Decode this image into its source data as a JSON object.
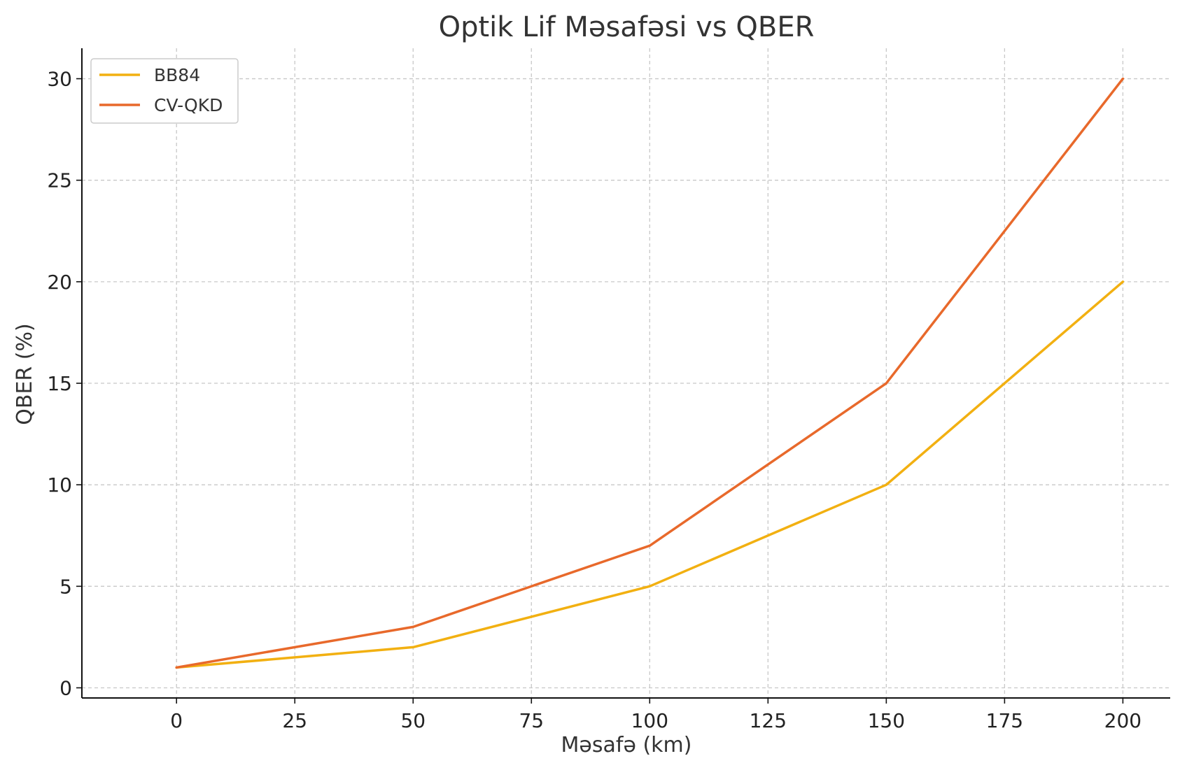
{
  "chart_data": {
    "type": "line",
    "title": "Optik Lif Məsafəsi vs QBER",
    "xlabel": "Məsafə (km)",
    "ylabel": "QBER (%)",
    "x": [
      0,
      50,
      100,
      150,
      200
    ],
    "xlim": [
      -20,
      210
    ],
    "ylim": [
      -0.5,
      31.5
    ],
    "xticks": [
      0,
      25,
      50,
      75,
      100,
      125,
      150,
      175,
      200
    ],
    "yticks": [
      0,
      5,
      10,
      15,
      20,
      25,
      30
    ],
    "grid": true,
    "legend_position": "top-left",
    "series": [
      {
        "name": "BB84",
        "color": "#f2b011",
        "values": [
          1,
          2,
          5,
          10,
          20
        ]
      },
      {
        "name": "CV-QKD",
        "color": "#e8692b",
        "values": [
          1,
          3,
          7,
          15,
          30
        ]
      }
    ]
  }
}
